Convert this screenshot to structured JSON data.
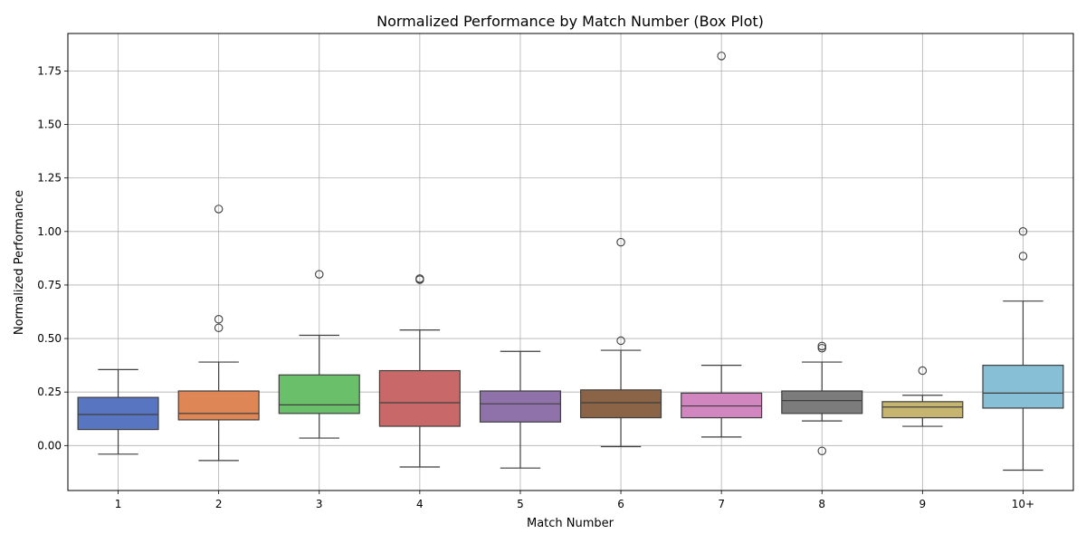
{
  "chart_data": {
    "type": "box",
    "title": "Normalized Performance by Match Number (Box Plot)",
    "xlabel": "Match Number",
    "ylabel": "Normalized Performance",
    "ylim": [
      -0.21,
      1.925
    ],
    "yticks": [
      0.0,
      0.25,
      0.5,
      0.75,
      1.0,
      1.25,
      1.5,
      1.75
    ],
    "ytick_labels": [
      "0.00",
      "0.25",
      "0.50",
      "0.75",
      "1.00",
      "1.25",
      "1.50",
      "1.75"
    ],
    "grid": true,
    "categories": [
      "1",
      "2",
      "3",
      "4",
      "5",
      "6",
      "7",
      "8",
      "9",
      "10+"
    ],
    "boxes": [
      {
        "category": "1",
        "whisker_low": -0.04,
        "q1": 0.075,
        "median": 0.145,
        "q3": 0.225,
        "whisker_high": 0.355,
        "outliers": [],
        "color": "#5875c1"
      },
      {
        "category": "2",
        "whisker_low": -0.07,
        "q1": 0.12,
        "median": 0.15,
        "q3": 0.255,
        "whisker_high": 0.39,
        "outliers": [
          0.55,
          0.59,
          1.105
        ],
        "color": "#df8656"
      },
      {
        "category": "3",
        "whisker_low": 0.035,
        "q1": 0.15,
        "median": 0.19,
        "q3": 0.33,
        "whisker_high": 0.515,
        "outliers": [
          0.8
        ],
        "color": "#6abf6a"
      },
      {
        "category": "4",
        "whisker_low": -0.1,
        "q1": 0.09,
        "median": 0.2,
        "q3": 0.35,
        "whisker_high": 0.54,
        "outliers": [
          0.775,
          0.78
        ],
        "color": "#c86868"
      },
      {
        "category": "5",
        "whisker_low": -0.105,
        "q1": 0.11,
        "median": 0.195,
        "q3": 0.255,
        "whisker_high": 0.44,
        "outliers": [],
        "color": "#9072ab"
      },
      {
        "category": "6",
        "whisker_low": -0.005,
        "q1": 0.13,
        "median": 0.2,
        "q3": 0.26,
        "whisker_high": 0.445,
        "outliers": [
          0.49,
          0.95
        ],
        "color": "#8b6447"
      },
      {
        "category": "7",
        "whisker_low": 0.04,
        "q1": 0.13,
        "median": 0.185,
        "q3": 0.245,
        "whisker_high": 0.375,
        "outliers": [
          1.82
        ],
        "color": "#d286c0"
      },
      {
        "category": "8",
        "whisker_low": 0.115,
        "q1": 0.15,
        "median": 0.21,
        "q3": 0.255,
        "whisker_high": 0.39,
        "outliers": [
          -0.025,
          0.455,
          0.465
        ],
        "color": "#7c7c7c"
      },
      {
        "category": "9",
        "whisker_low": 0.09,
        "q1": 0.13,
        "median": 0.18,
        "q3": 0.205,
        "whisker_high": 0.235,
        "outliers": [
          0.35
        ],
        "color": "#c6b471"
      },
      {
        "category": "10+",
        "whisker_low": -0.115,
        "q1": 0.175,
        "median": 0.245,
        "q3": 0.375,
        "whisker_high": 0.675,
        "outliers": [
          0.885,
          1.0
        ],
        "color": "#86bfd6"
      }
    ]
  }
}
